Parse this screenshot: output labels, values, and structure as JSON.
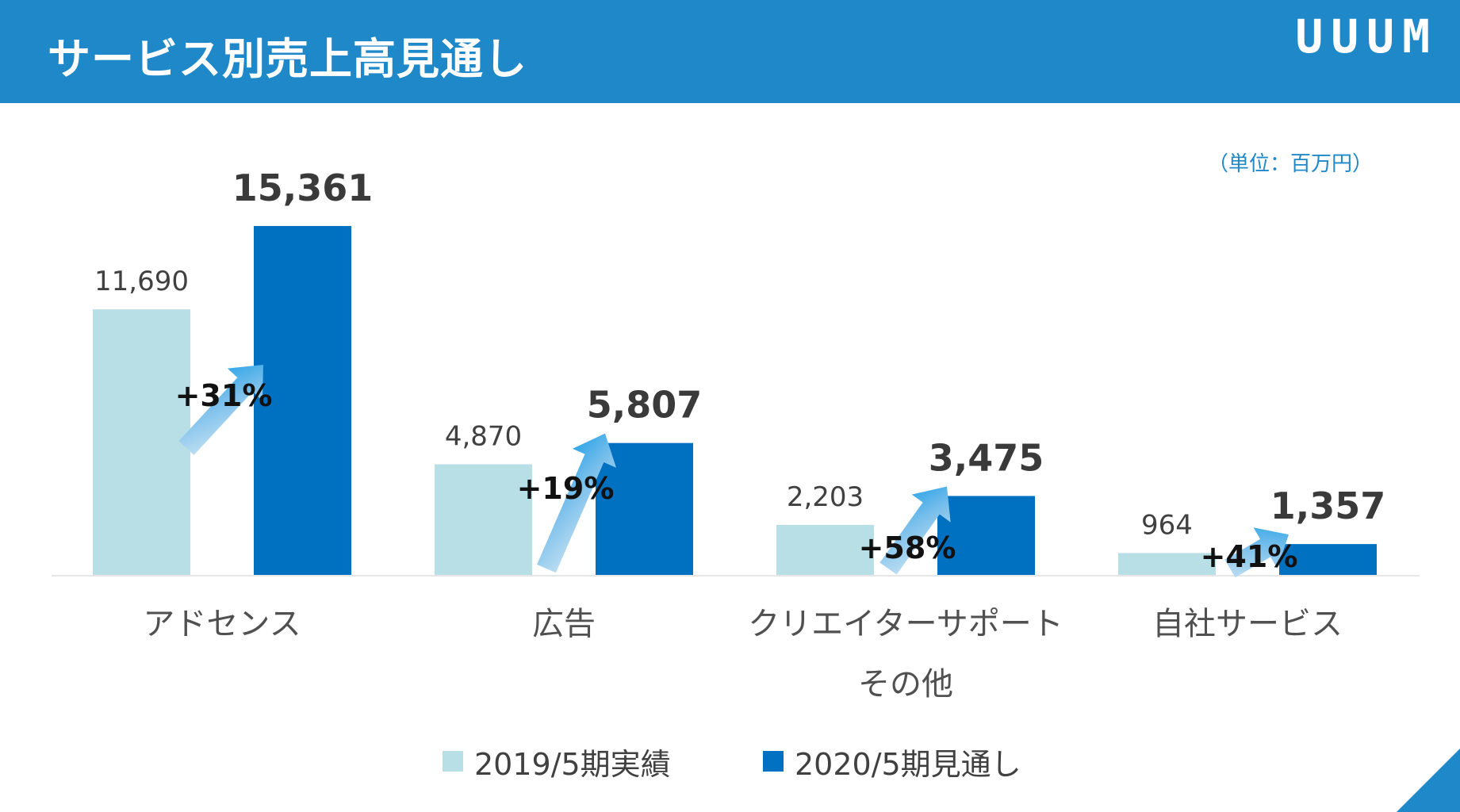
{
  "header": {
    "title": "サービス別売上高見通し",
    "logo": "UUUM"
  },
  "unit_label": "（単位：百万円）",
  "colors": {
    "header_bg": "#1e88c9",
    "series_2019": "#b8dfe6",
    "series_2020": "#0070c0",
    "text": "#404040"
  },
  "chart_data": {
    "type": "bar",
    "title": "サービス別売上高見通し",
    "unit": "（単位：百万円）",
    "categories": [
      [
        "アドセンス"
      ],
      [
        "広告"
      ],
      [
        "クリエイターサポート",
        "その他"
      ],
      [
        "自社サービス"
      ]
    ],
    "series": [
      {
        "name": "2019/5期実績",
        "values": [
          11690,
          4870,
          2203,
          964
        ],
        "labels": [
          "11,690",
          "4,870",
          "2,203",
          "964"
        ]
      },
      {
        "name": "2020/5期見通し",
        "values": [
          15361,
          5807,
          3475,
          1357
        ],
        "labels": [
          "15,361",
          "5,807",
          "3,475",
          "1,357"
        ]
      }
    ],
    "growth": [
      "+31%",
      "+19%",
      "+58%",
      "+41%"
    ],
    "ylim": [
      0,
      16000
    ],
    "legend_position": "bottom"
  }
}
